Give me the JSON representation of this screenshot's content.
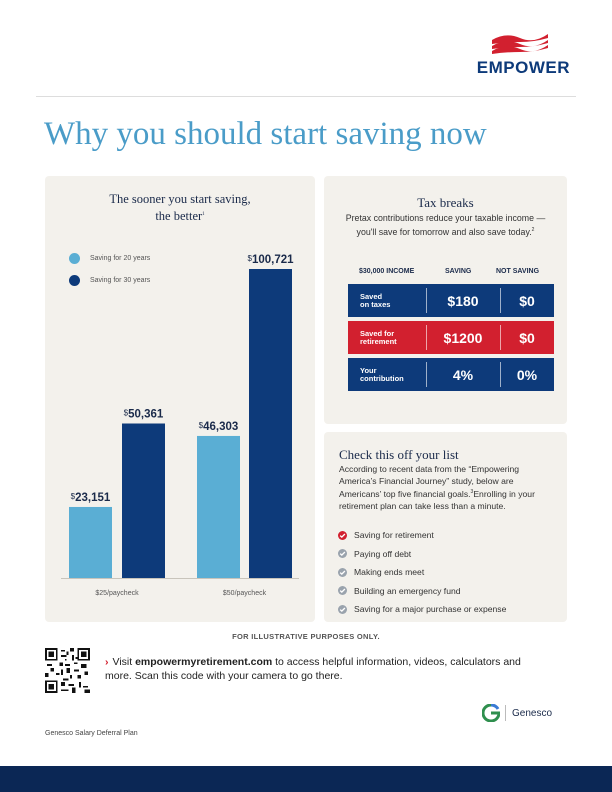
{
  "brand": {
    "name": "EMPOWER",
    "color_navy": "#0d3a7a",
    "color_red": "#d2202f",
    "icon": "flag-wave-logo"
  },
  "page_title": "Why you should start saving now",
  "savings_chart": {
    "title_line1": "The sooner you start saving,",
    "title_line2": "the better",
    "title_footnote": "1",
    "legend": [
      {
        "label": "Saving for 20 years",
        "color": "#5aaed4"
      },
      {
        "label": "Saving for 30 years",
        "color": "#0d3a7a"
      }
    ]
  },
  "chart_data": {
    "type": "bar",
    "categories": [
      "$25/paycheck",
      "$50/paycheck"
    ],
    "series": [
      {
        "name": "Saving for 20 years",
        "values": [
          23151,
          46303
        ],
        "labels": [
          "23,151",
          "46,303"
        ],
        "color": "#5aaed4"
      },
      {
        "name": "Saving for 30 years",
        "values": [
          50361,
          100721
        ],
        "labels": [
          "50,361",
          "100,721"
        ],
        "color": "#0d3a7a"
      }
    ],
    "currency_symbol": "$",
    "ylim": [
      0,
      100721
    ]
  },
  "tax_breaks": {
    "title": "Tax breaks",
    "description": "Pretax contributions reduce your taxable income — you'll save for tomorrow and also save today.",
    "description_footnote": "2",
    "headers": {
      "income": "$30,000 INCOME",
      "saving": "SAVING",
      "not_saving": "NOT SAVING"
    },
    "rows": [
      {
        "label_line1": "Saved",
        "label_line2": "on taxes",
        "saving": "$180",
        "not_saving": "$0",
        "color": "#0d3a7a"
      },
      {
        "label_line1": "Saved for",
        "label_line2": "retirement",
        "saving": "$1200",
        "not_saving": "$0",
        "color": "#d2202f"
      },
      {
        "label_line1": "Your",
        "label_line2": "contribution",
        "saving": "4%",
        "not_saving": "0%",
        "color": "#0d3a7a"
      }
    ]
  },
  "checklist": {
    "title": "Check this off your list",
    "description": "According to recent data from the “Empowering America’s Financial Journey” study, below are Americans’ top five financial goals.",
    "description_footnote": "3",
    "description_tail": "Enrolling in your retirement plan can take less than a minute.",
    "items": [
      {
        "label": "Saving for retirement",
        "checked_color": "#d2202f",
        "icon": "check-circle-icon"
      },
      {
        "label": "Paying off debt",
        "checked_color": "#9aa3ad",
        "icon": "check-circle-icon"
      },
      {
        "label": "Making ends meet",
        "checked_color": "#9aa3ad",
        "icon": "check-circle-icon"
      },
      {
        "label": "Building an emergency fund",
        "checked_color": "#9aa3ad",
        "icon": "check-circle-icon"
      },
      {
        "label": "Saving for a major purchase or expense",
        "checked_color": "#9aa3ad",
        "icon": "check-circle-icon"
      }
    ]
  },
  "footer": {
    "illustrative": "FOR ILLUSTRATIVE PURPOSES ONLY.",
    "visit_prefix": "Visit ",
    "visit_link": "empowermyretirement.com",
    "visit_suffix": " to access helpful information, videos, calculators and more. Scan this code with your camera to go there.",
    "qr_icon": "qr-code",
    "partner": "Genesco",
    "plan_name": "Genesco Salary Deferral Plan"
  }
}
